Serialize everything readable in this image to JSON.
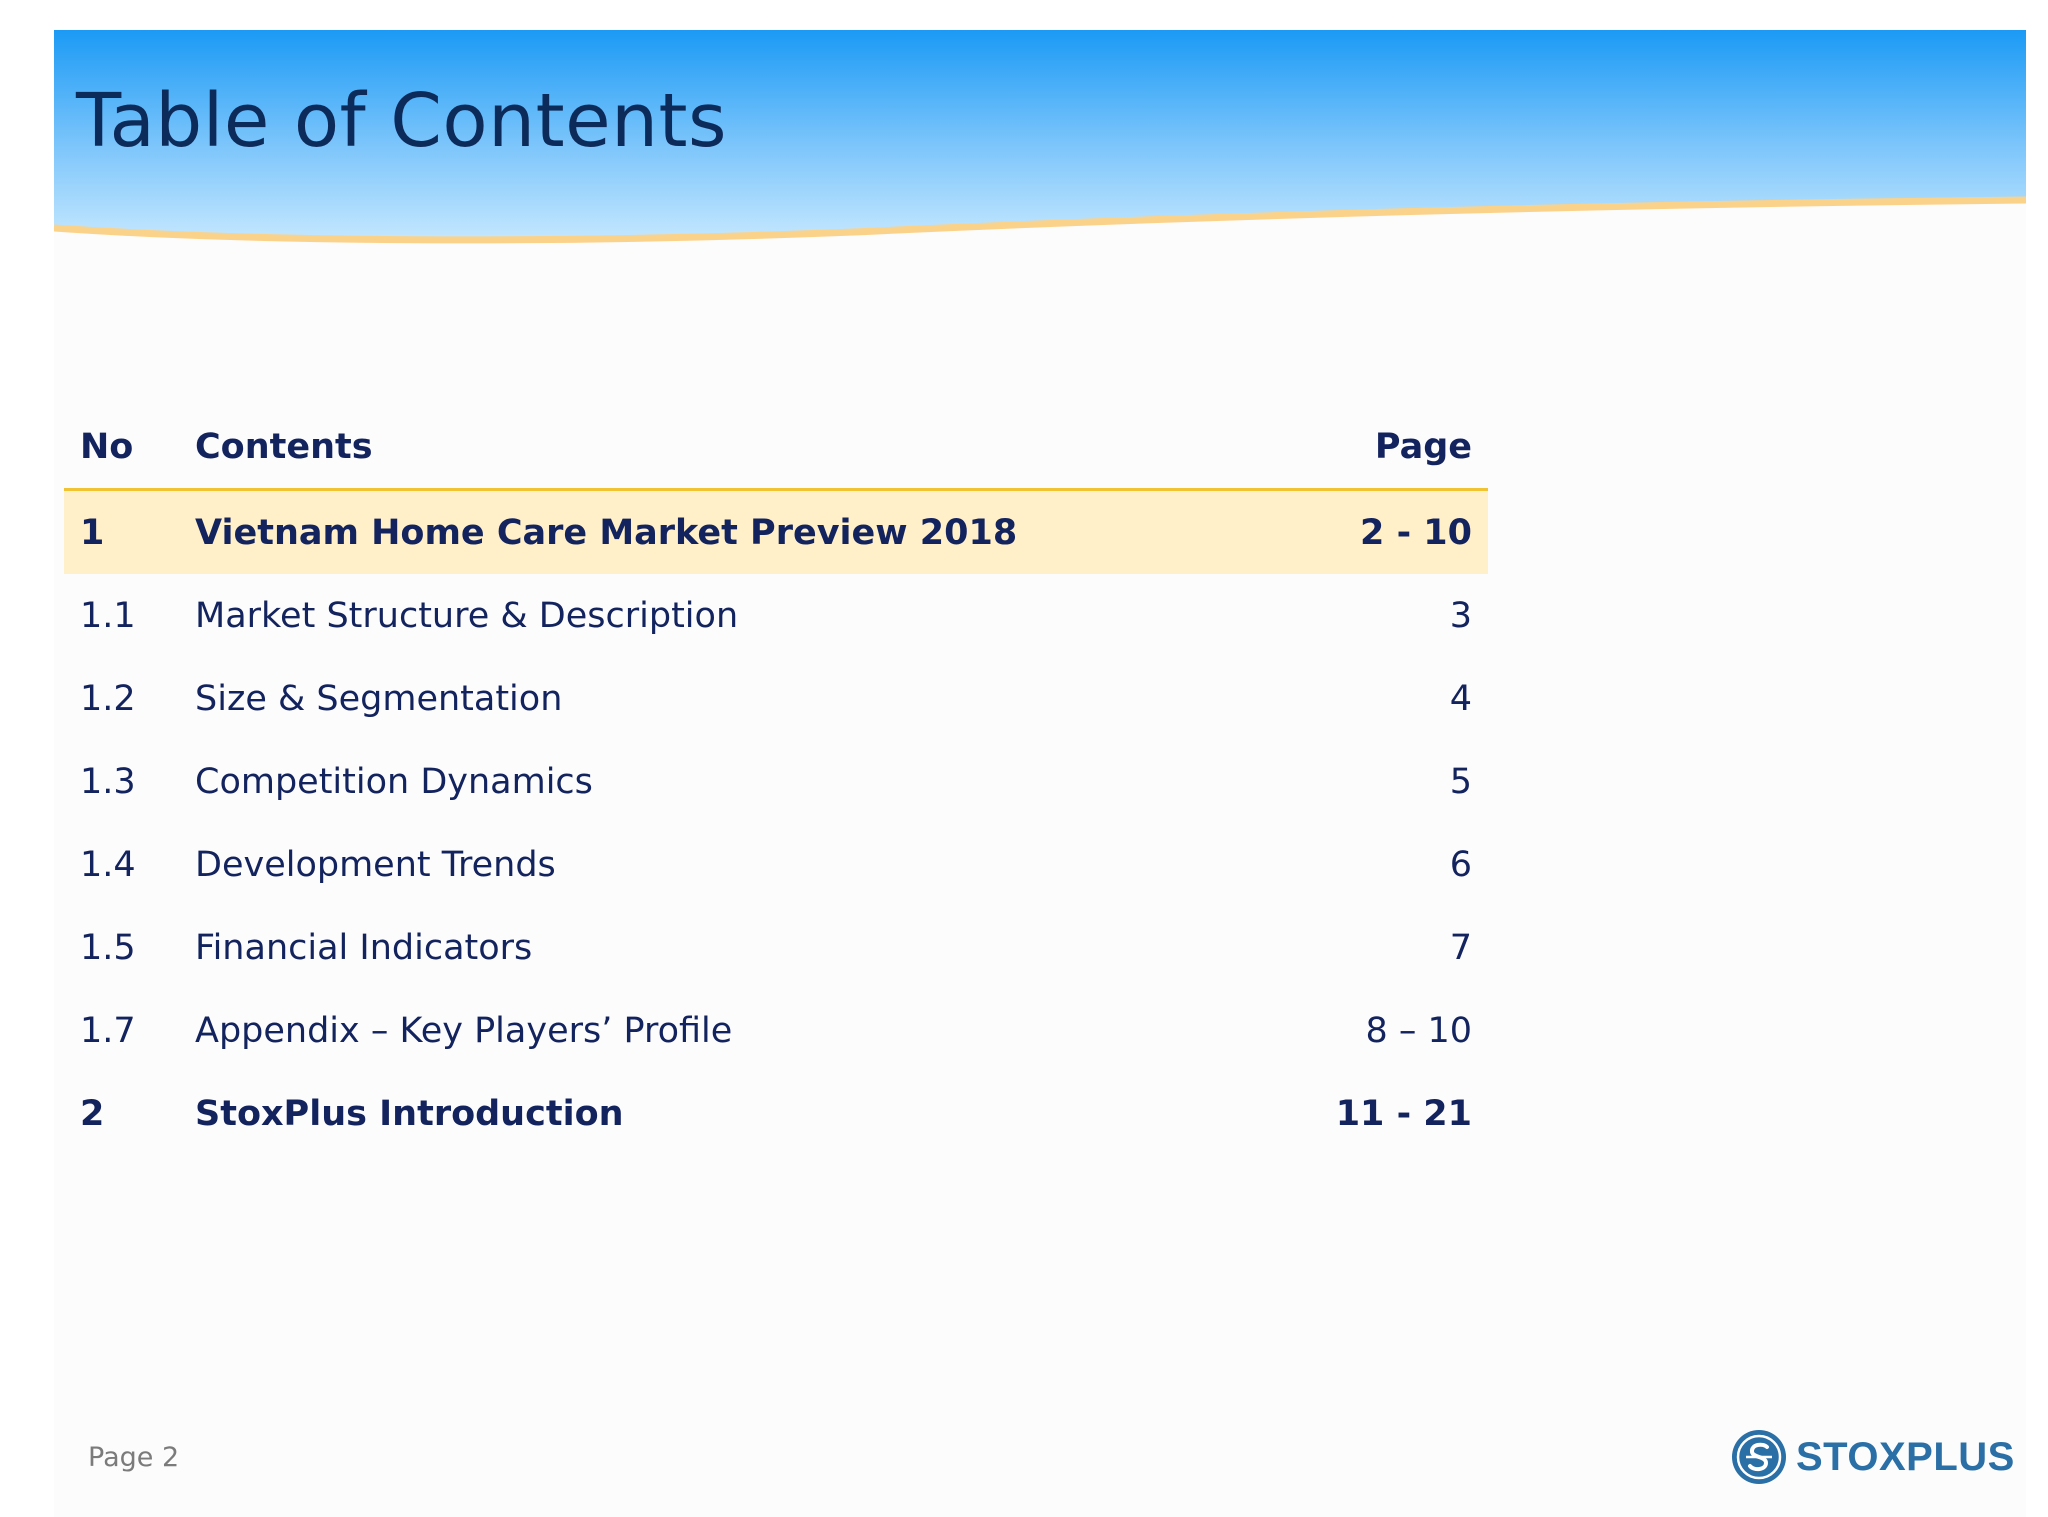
{
  "header": {
    "title": "Table of Contents"
  },
  "toc": {
    "columns": {
      "no": "No",
      "contents": "Contents",
      "page": "Page"
    },
    "rows": [
      {
        "no": "1",
        "contents": "Vietnam Home Care Market Preview 2018",
        "page": "2 - 10"
      },
      {
        "no": "1.1",
        "contents": "Market Structure & Description",
        "page": "3"
      },
      {
        "no": "1.2",
        "contents": "Size & Segmentation",
        "page": "4"
      },
      {
        "no": "1.3",
        "contents": "Competition Dynamics",
        "page": "5"
      },
      {
        "no": "1.4",
        "contents": "Development Trends",
        "page": "6"
      },
      {
        "no": "1.5",
        "contents": "Financial Indicators",
        "page": "7"
      },
      {
        "no": "1.7",
        "contents": "Appendix – Key Players’ Profile",
        "page": "8 – 10"
      },
      {
        "no": "2",
        "contents": "StoxPlus Introduction",
        "page": "11 - 21"
      }
    ]
  },
  "footer": {
    "page_label": "Page 2",
    "logo_text": "STOXPLUS",
    "logo_icon": "stoxplus-s-emblem-icon"
  },
  "colors": {
    "banner_top": "#1b9af5",
    "banner_bottom": "#c4e7fe",
    "banner_wave": "#fbd28a",
    "title_text": "#0d2b5a",
    "table_text": "#13235e",
    "highlight_row": "#fff0c9",
    "header_rule": "#f1c232",
    "logo_blue": "#2a6fa6"
  }
}
